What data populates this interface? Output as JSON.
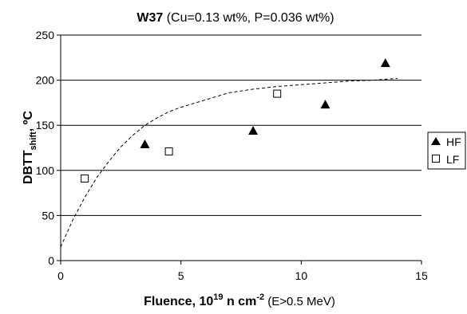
{
  "chart_data": {
    "type": "scatter",
    "title": {
      "bold": "W37",
      "rest": " (Cu=0.13 wt%, P=0.036 wt%)"
    },
    "xlabel": {
      "main": "Fluence, 10",
      "sup": "19",
      "mid": " n cm",
      "sup2": "-2",
      "note": " (E>0.5 MeV)"
    },
    "ylabel": {
      "main": "DBTT",
      "sub": "shift",
      "rest": ", ºC"
    },
    "xlim": [
      0,
      15
    ],
    "ylim": [
      0,
      250
    ],
    "x_ticks": [
      0,
      5,
      10,
      15
    ],
    "y_ticks": [
      0,
      50,
      100,
      150,
      200,
      250
    ],
    "grid": "horizontal",
    "legend_position": "right",
    "series": [
      {
        "name": "HF",
        "marker": "filled-triangle",
        "color": "#000000",
        "points": [
          [
            3.5,
            129
          ],
          [
            8.0,
            144
          ],
          [
            11.0,
            173
          ],
          [
            13.5,
            219
          ]
        ]
      },
      {
        "name": "LF",
        "marker": "open-square",
        "color": "#000000",
        "points": [
          [
            1.0,
            91
          ],
          [
            4.5,
            121
          ],
          [
            9.0,
            185
          ]
        ]
      }
    ],
    "trend_curve": {
      "style": "dashed",
      "points": [
        [
          0,
          15
        ],
        [
          0.5,
          45
        ],
        [
          1,
          70
        ],
        [
          1.5,
          92
        ],
        [
          2,
          110
        ],
        [
          2.5,
          126
        ],
        [
          3,
          139
        ],
        [
          3.5,
          150
        ],
        [
          4,
          158
        ],
        [
          4.5,
          165
        ],
        [
          5,
          170
        ],
        [
          6,
          178
        ],
        [
          7,
          186
        ],
        [
          8,
          190
        ],
        [
          9,
          193
        ],
        [
          10,
          195
        ],
        [
          11,
          197
        ],
        [
          12,
          199
        ],
        [
          13,
          200
        ],
        [
          14,
          202
        ]
      ]
    }
  }
}
